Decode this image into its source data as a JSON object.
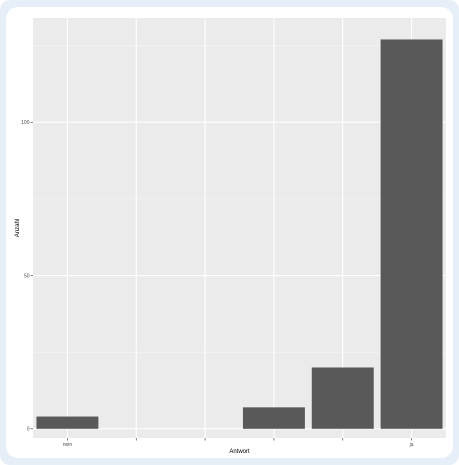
{
  "chart_data": {
    "type": "bar",
    "categories": [
      "nein",
      "",
      "",
      "",
      "",
      "ja"
    ],
    "values": [
      4,
      0,
      0,
      7,
      20,
      127
    ],
    "xlabel": "Antwort",
    "ylabel": "Anzahl",
    "ylim": [
      -3,
      134
    ],
    "yticks": [
      0,
      50,
      100
    ],
    "ytick_labels": [
      "0",
      "50",
      "100"
    ],
    "grid": true,
    "bar_color": "#595959",
    "panel_color": "#ebebeb"
  }
}
